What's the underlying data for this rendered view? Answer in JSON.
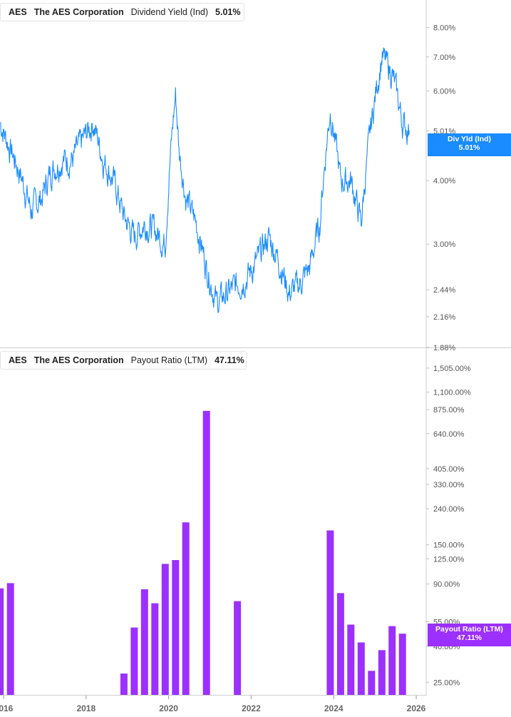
{
  "top_legend": {
    "ticker": "AES",
    "company": "The AES Corporation",
    "metric": "Dividend Yield (Ind)",
    "value": "5.01%",
    "color": "#1a8cff"
  },
  "bottom_legend": {
    "ticker": "AES",
    "company": "The AES Corporation",
    "metric": "Payout Ratio (LTM)",
    "value": "47.11%",
    "color": "#9b30ff"
  },
  "top_tag": {
    "label": "Div Yld (Ind)",
    "value": "5.01%"
  },
  "bottom_tag": {
    "label": "Payout Ratio (LTM)",
    "value": "47.11%"
  },
  "chart_data": [
    {
      "type": "line",
      "scale": "log",
      "series": [
        {
          "name": "Dividend Yield (Ind)",
          "x": [
            "2015-12",
            "2016-03",
            "2016-06",
            "2016-09",
            "2016-12",
            "2017-03",
            "2017-06",
            "2017-09",
            "2017-12",
            "2018-03",
            "2018-06",
            "2018-09",
            "2018-12",
            "2019-03",
            "2019-06",
            "2019-09",
            "2019-12",
            "2020-03",
            "2020-04",
            "2020-06",
            "2020-09",
            "2020-12",
            "2021-03",
            "2021-06",
            "2021-09",
            "2021-12",
            "2022-03",
            "2022-06",
            "2022-09",
            "2022-12",
            "2023-03",
            "2023-06",
            "2023-09",
            "2023-12",
            "2024-03",
            "2024-06",
            "2024-09",
            "2024-12",
            "2025-03",
            "2025-06",
            "2025-09",
            "2025-11"
          ],
          "values": [
            5.2,
            4.6,
            4.1,
            3.5,
            3.7,
            4.2,
            4.4,
            4.4,
            4.8,
            5.2,
            4.4,
            4.0,
            3.4,
            3.1,
            3.3,
            3.2,
            3.0,
            5.9,
            4.6,
            3.7,
            3.3,
            2.7,
            2.3,
            2.4,
            2.5,
            2.6,
            2.8,
            3.1,
            2.8,
            2.4,
            2.5,
            2.7,
            3.3,
            5.5,
            4.0,
            4.0,
            3.3,
            5.2,
            7.0,
            6.5,
            5.2,
            5.01
          ]
        }
      ],
      "yticks": [
        "8.00%",
        "7.00%",
        "6.00%",
        "5.01%",
        "4.00%",
        "3.00%",
        "2.44%",
        "2.16%",
        "1.88%"
      ],
      "ylim": [
        1.88,
        8.6
      ]
    },
    {
      "type": "bar",
      "scale": "log",
      "series": [
        {
          "name": "Payout Ratio (LTM)",
          "x": [
            "2015-12",
            "2016-03",
            "2018-12",
            "2019-03",
            "2019-06",
            "2019-09",
            "2019-12",
            "2020-03",
            "2020-06",
            "2020-12",
            "2021-09",
            "2023-12",
            "2024-03",
            "2024-06",
            "2024-09",
            "2024-12",
            "2025-03",
            "2025-06",
            "2025-09"
          ],
          "values": [
            85,
            91,
            28,
            51,
            84,
            70,
            117,
            123,
            201,
            861,
            72,
            181,
            80,
            53,
            42,
            29,
            38,
            52,
            47.11
          ]
        }
      ],
      "yticks": [
        "1,505.00%",
        "1,100.00%",
        "875.00%",
        "640.00%",
        "405.00%",
        "330.00%",
        "240.00%",
        "150.00%",
        "125.00%",
        "90.00%",
        "55.00%",
        "40.00%",
        "25.00%"
      ],
      "ylim": [
        21,
        1650
      ]
    }
  ],
  "x_axis": {
    "ticks": [
      "2016",
      "2018",
      "2020",
      "2022",
      "2024",
      "2026"
    ]
  }
}
